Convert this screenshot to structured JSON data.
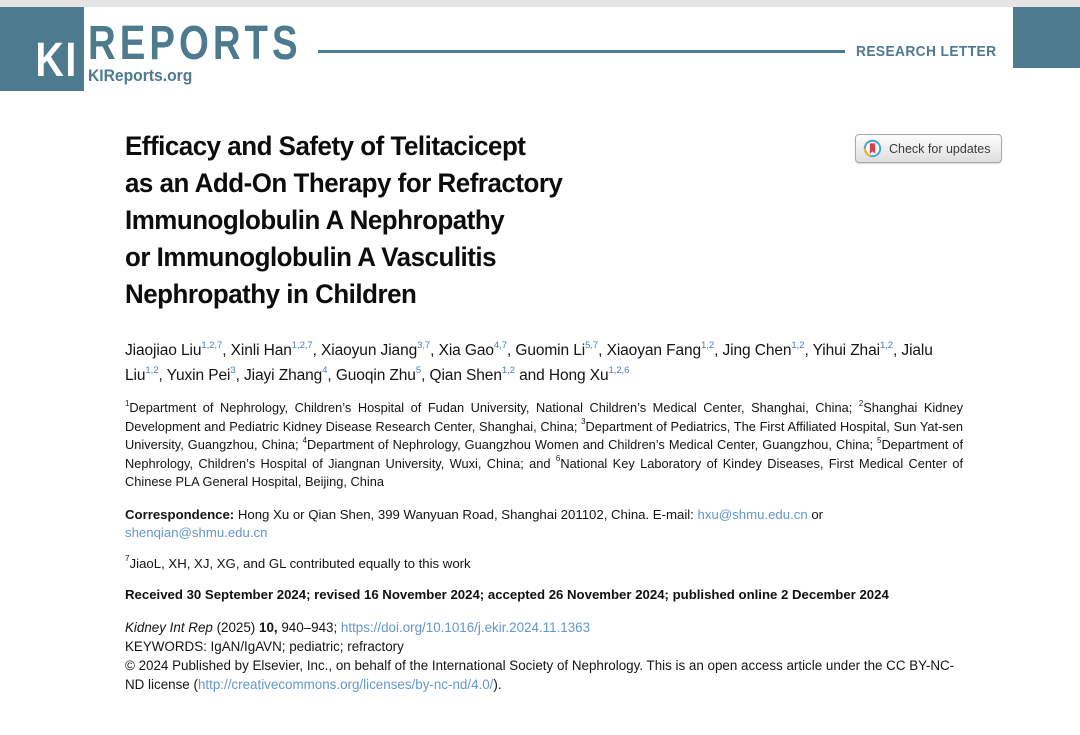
{
  "colors": {
    "teal": "#4d7a8f",
    "link_blue": "#6397cd",
    "superscript_blue": "#4a7ec2",
    "top_strip_gray": "#e5e5e5"
  },
  "masthead": {
    "logo_ki": "KI",
    "logo_reports": "REPORTS",
    "site": "KIReports.org",
    "article_type": "RESEARCH LETTER"
  },
  "badge": {
    "label": "Check for updates",
    "icon": "crossmark-icon"
  },
  "article": {
    "title": "Efficacy and Safety of Telitacicept\nas an Add-On Therapy for Refractory\nImmunoglobulin A Nephropathy\nor Immunoglobulin A Vasculitis\nNephropathy in Children",
    "authors": [
      {
        "name": "Jiaojiao Liu",
        "sup": "1,2,7"
      },
      {
        "name": "Xinli Han",
        "sup": "1,2,7"
      },
      {
        "name": "Xiaoyun Jiang",
        "sup": "3,7"
      },
      {
        "name": "Xia Gao",
        "sup": "4,7"
      },
      {
        "name": "Guomin Li",
        "sup": "5,7"
      },
      {
        "name": "Xiaoyan Fang",
        "sup": "1,2"
      },
      {
        "name": "Jing Chen",
        "sup": "1,2"
      },
      {
        "name": "Yihui Zhai",
        "sup": "1,2"
      },
      {
        "name": "Jialu Liu",
        "sup": "1,2"
      },
      {
        "name": "Yuxin Pei",
        "sup": "3"
      },
      {
        "name": "Jiayi Zhang",
        "sup": "4"
      },
      {
        "name": "Guoqin Zhu",
        "sup": "5"
      },
      {
        "name": "Qian Shen",
        "sup": "1,2"
      },
      {
        "name": "Hong Xu",
        "sup": "1,2,6"
      }
    ],
    "affiliation_segments": [
      {
        "t": "sup",
        "v": "1"
      },
      {
        "t": "text",
        "v": "Department of Nephrology, Children’s Hospital of Fudan University, National Children’s Medical Center, Shanghai, China; "
      },
      {
        "t": "sup",
        "v": "2"
      },
      {
        "t": "text",
        "v": "Shanghai Kidney Development and Pediatric Kidney Disease Research Center, Shanghai, China; "
      },
      {
        "t": "sup",
        "v": "3"
      },
      {
        "t": "text",
        "v": "Department of Pediatrics, The First Affiliated Hospital, Sun Yat-sen University, Guangzhou, China; "
      },
      {
        "t": "sup",
        "v": "4"
      },
      {
        "t": "text",
        "v": "Department of Nephrology, Guangzhou Women and Children’s Medical Center, Guangzhou, China; "
      },
      {
        "t": "sup",
        "v": "5"
      },
      {
        "t": "text",
        "v": "Department of Nephrology, Children’s Hospital of Jiangnan University, Wuxi, China; and "
      },
      {
        "t": "sup",
        "v": "6"
      },
      {
        "t": "text",
        "v": "National Key Laboratory of Kindey Diseases, First Medical Center of Chinese PLA General Hospital, Beijing, China"
      }
    ],
    "correspondence_segments": [
      {
        "t": "b",
        "v": "Correspondence:"
      },
      {
        "t": "text",
        "v": " Hong Xu or Qian Shen, 399 Wanyuan Road, Shanghai 201102, China. E-mail: "
      },
      {
        "t": "a",
        "v": "hxu@shmu.edu.cn",
        "name": "email-link-hxu"
      },
      {
        "t": "text",
        "v": " or "
      },
      {
        "t": "a",
        "v": "shenqian@shmu.edu.cn",
        "name": "email-link-shenqian"
      }
    ],
    "contributed_segments": [
      {
        "t": "sup",
        "v": "7"
      },
      {
        "t": "text",
        "v": "JiaoL, XH, XJ, XG, and GL contributed equally to this work"
      }
    ],
    "dates": "Received 30 September 2024; revised 16 November 2024; accepted 26 November 2024; published online 2 December 2024",
    "citation_segments": [
      {
        "t": "i",
        "v": "Kidney Int Rep"
      },
      {
        "t": "text",
        "v": " (2025) "
      },
      {
        "t": "b",
        "v": "10,"
      },
      {
        "t": "text",
        "v": " 940–943; "
      },
      {
        "t": "a",
        "v": "https://doi.org/10.1016/j.ekir.2024.11.1363",
        "name": "doi-link"
      }
    ],
    "keywords": "KEYWORDS: IgAN/IgAVN; pediatric; refractory",
    "copyright_segments": [
      {
        "t": "text",
        "v": "© 2024 Published by Elsevier, Inc., on behalf of the International Society of Nephrology. This is an open access article under the CC BY-NC-ND license ("
      },
      {
        "t": "a",
        "v": "http://creativecommons.org/licenses/by-nc-nd/4.0/",
        "name": "license-link"
      },
      {
        "t": "text",
        "v": ")."
      }
    ]
  }
}
